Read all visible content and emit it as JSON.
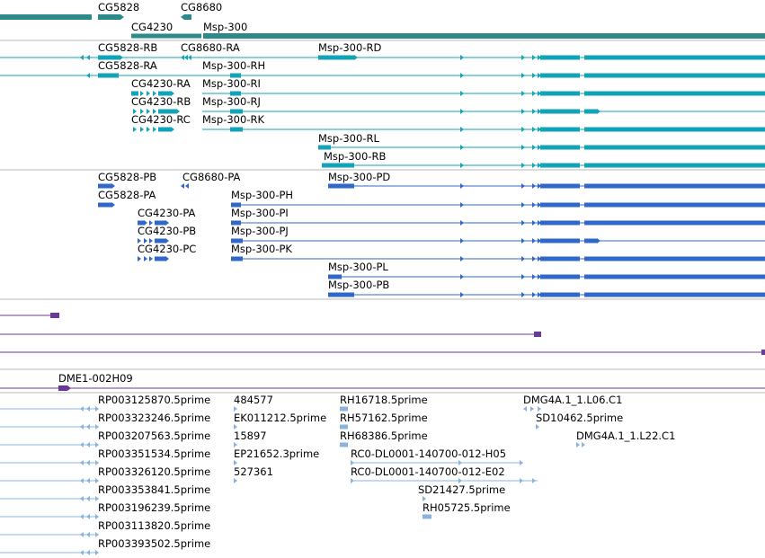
{
  "colors": {
    "gene": "#2e8a8a",
    "transcript": "#12a3b8",
    "protein": "#2f68c8",
    "purple": "#6a3a9a",
    "est": "#8ab4dc",
    "divider": "#b8b8b8"
  },
  "gene_labels": [
    "CG5828",
    "CG8680",
    "CG4230",
    "Msp-300"
  ],
  "transcript_labels": [
    "CG5828-RB",
    "CG8680-RA",
    "Msp-300-RD",
    "CG5828-RA",
    "Msp-300-RH",
    "CG4230-RA",
    "Msp-300-RI",
    "CG4230-RB",
    "Msp-300-RJ",
    "CG4230-RC",
    "Msp-300-RK",
    "Msp-300-RL",
    "Msp-300-RB"
  ],
  "protein_labels": [
    "CG5828-PB",
    "CG8680-PA",
    "Msp-300-PD",
    "CG5828-PA",
    "Msp-300-PH",
    "CG4230-PA",
    "Msp-300-PI",
    "CG4230-PB",
    "Msp-300-PJ",
    "CG4230-PC",
    "Msp-300-PK",
    "Msp-300-PL",
    "Msp-300-PB"
  ],
  "clone_label": "DME1-002H09",
  "est_labels": [
    "RP003125870.5prime",
    "484577",
    "RH16718.5prime",
    "DMG4A.1_1.L06.C1",
    "RP003323246.5prime",
    "EK011212.5prime",
    "RH57162.5prime",
    "SD10462.5prime",
    "RP003207563.5prime",
    "15897",
    "RH68386.5prime",
    "DMG4A.1_1.L22.C1",
    "RP003351534.5prime",
    "EP21652.3prime",
    "RC0-DL0001-140700-012-H05",
    "RP003326120.5prime",
    "527361",
    "RC0-DL0001-140700-012-E02",
    "RP003353841.5prime",
    "SD21427.5prime",
    "RP003196239.5prime",
    "RH05725.5prime",
    "RP003113820.5prime",
    "RP003393502.5prime"
  ]
}
